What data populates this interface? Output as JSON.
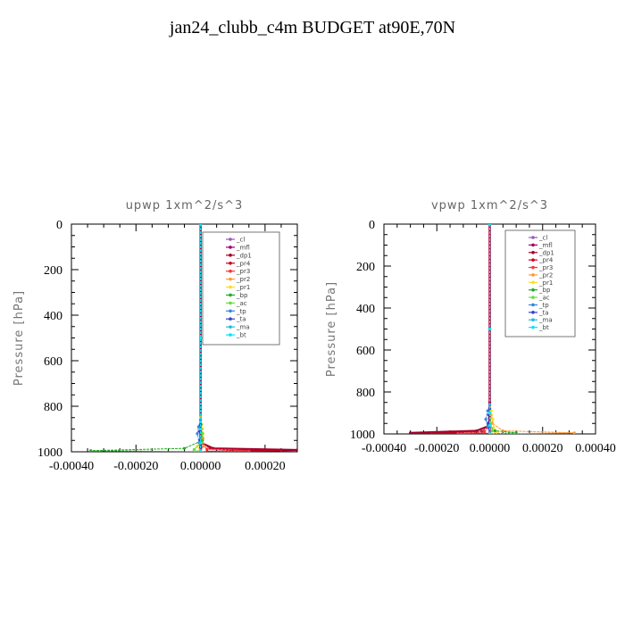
{
  "page_title": "jan24_clubb_c4m  BUDGET at90E,70N",
  "colors": {
    "_cl": "#9b59b6",
    "_mfl": "#a0006e",
    "_dp1": "#a0002a",
    "_pr4": "#cc0022",
    "_pr3": "#ff3333",
    "_pr2": "#ff9933",
    "_pr1": "#ffdd22",
    "_bp": "#22aa22",
    "_ac": "#66dd44",
    "_tp": "#3388dd",
    "_ta": "#3344cc",
    "_ma": "#22bbdd",
    "_bt": "#00e5ff"
  },
  "chart_data": [
    {
      "type": "line",
      "title": "upwp   1xm^2/s^3",
      "ylabel": "Pressure [hPa]",
      "xlim": [
        -0.0004,
        0.0003
      ],
      "ylim": [
        1000,
        0
      ],
      "x_ticks": [
        "-0.00040",
        "-0.00020",
        "0.00000",
        "0.00020"
      ],
      "y_ticks": [
        "0",
        "200",
        "400",
        "600",
        "800",
        "1000"
      ],
      "legend": "top-right",
      "legend_labels": [
        "_cl",
        "_mfl",
        "_dp1",
        "_pr4",
        "_pr3",
        "_pr2",
        "_pr1",
        "_bp",
        "_ac",
        "_tp",
        "_ta",
        "_ma",
        "_bt"
      ],
      "series": [
        {
          "name": "_cl",
          "points": [
            [
              0,
              0
            ],
            [
              0,
              500
            ],
            [
              0,
              850
            ],
            [
              0,
              950
            ],
            [
              2e-06,
              980
            ],
            [
              0,
              1000
            ]
          ]
        },
        {
          "name": "_mfl",
          "points": [
            [
              0,
              0
            ],
            [
              0,
              500
            ],
            [
              0,
              850
            ],
            [
              0,
              950
            ],
            [
              0,
              980
            ],
            [
              0,
              1000
            ]
          ]
        },
        {
          "name": "_dp1",
          "points": [
            [
              0,
              0
            ],
            [
              0,
              500
            ],
            [
              0,
              900
            ],
            [
              0,
              960
            ],
            [
              4e-05,
              985
            ],
            [
              0.0003,
              992
            ],
            [
              2e-05,
              1000
            ]
          ]
        },
        {
          "name": "_pr4",
          "points": [
            [
              0,
              0
            ],
            [
              0,
              500
            ],
            [
              0,
              900
            ],
            [
              3e-06,
              960
            ],
            [
              3e-05,
              985
            ],
            [
              0.00025,
              995
            ],
            [
              0,
              1000
            ]
          ]
        },
        {
          "name": "_pr3",
          "points": [
            [
              0,
              0
            ],
            [
              0,
              500
            ],
            [
              0,
              900
            ],
            [
              0,
              960
            ],
            [
              2e-05,
              988
            ],
            [
              0.00015,
              997
            ],
            [
              0,
              1000
            ]
          ]
        },
        {
          "name": "_pr2",
          "points": [
            [
              0,
              0
            ],
            [
              0,
              500
            ],
            [
              0,
              860
            ],
            [
              5e-06,
              900
            ],
            [
              8e-06,
              940
            ],
            [
              1e-05,
              975
            ],
            [
              0,
              1000
            ]
          ]
        },
        {
          "name": "_pr1",
          "points": [
            [
              0,
              0
            ],
            [
              0,
              500
            ],
            [
              0,
              850
            ],
            [
              4e-06,
              880
            ],
            [
              8e-06,
              920
            ],
            [
              -1e-05,
              975
            ],
            [
              0,
              1000
            ]
          ]
        },
        {
          "name": "_bp",
          "points": [
            [
              0,
              0
            ],
            [
              0,
              500
            ],
            [
              0,
              900
            ],
            [
              6e-06,
              950
            ],
            [
              -5e-05,
              985
            ],
            [
              -0.00034,
              995
            ],
            [
              0,
              1000
            ]
          ]
        },
        {
          "name": "_ac",
          "points": [
            [
              0,
              0
            ],
            [
              0,
              500
            ],
            [
              2e-06,
              880
            ],
            [
              6e-06,
              920
            ],
            [
              4e-06,
              960
            ],
            [
              -2e-05,
              990
            ],
            [
              0,
              1000
            ]
          ]
        },
        {
          "name": "_tp",
          "points": [
            [
              0,
              0
            ],
            [
              0,
              500
            ],
            [
              0,
              860
            ],
            [
              -6e-06,
              890
            ],
            [
              -1e-05,
              920
            ],
            [
              -4e-06,
              960
            ],
            [
              0,
              1000
            ]
          ]
        },
        {
          "name": "_ta",
          "points": [
            [
              0,
              0
            ],
            [
              0,
              500
            ],
            [
              0,
              880
            ],
            [
              -3e-06,
              910
            ],
            [
              -2e-06,
              950
            ],
            [
              0,
              1000
            ]
          ]
        },
        {
          "name": "_ma",
          "points": [
            [
              0,
              0
            ],
            [
              0,
              500
            ],
            [
              0,
              900
            ],
            [
              0,
              960
            ],
            [
              0,
              1000
            ]
          ]
        },
        {
          "name": "_bt",
          "points": [
            [
              0,
              0
            ],
            [
              0,
              500
            ],
            [
              0,
              900
            ],
            [
              0,
              960
            ],
            [
              0,
              1000
            ]
          ]
        }
      ]
    },
    {
      "type": "line",
      "title": "vpwp   1xm^2/s^3",
      "ylabel": "Pressure [hPa]",
      "xlim": [
        -0.0004,
        0.0004
      ],
      "ylim": [
        1000,
        0
      ],
      "x_ticks": [
        "-0.00040",
        "-0.00020",
        "0.00000",
        "0.00020",
        "0.00040"
      ],
      "y_ticks": [
        "0",
        "200",
        "400",
        "600",
        "800",
        "1000"
      ],
      "legend": "top-right",
      "legend_labels": [
        "_cl",
        "_mfl",
        "_dp1",
        "_pr4",
        "_pr3",
        "_pr2",
        "_pr1",
        "_bp",
        "_ac",
        "_tp",
        "_ta",
        "_ma",
        "_bt"
      ],
      "series": [
        {
          "name": "_cl",
          "points": [
            [
              0,
              0
            ],
            [
              0,
              500
            ],
            [
              0,
              850
            ],
            [
              0,
              950
            ],
            [
              0,
              1000
            ]
          ]
        },
        {
          "name": "_mfl",
          "points": [
            [
              0,
              0
            ],
            [
              0,
              500
            ],
            [
              0,
              850
            ],
            [
              0,
              950
            ],
            [
              0,
              1000
            ]
          ]
        },
        {
          "name": "_dp1",
          "points": [
            [
              0,
              0
            ],
            [
              0,
              500
            ],
            [
              0,
              900
            ],
            [
              0,
              960
            ],
            [
              -5e-05,
              985
            ],
            [
              -0.0003,
              995
            ],
            [
              0,
              1000
            ]
          ]
        },
        {
          "name": "_pr4",
          "points": [
            [
              0,
              0
            ],
            [
              0,
              500
            ],
            [
              0,
              900
            ],
            [
              0,
              960
            ],
            [
              -3e-05,
              988
            ],
            [
              -0.00022,
              997
            ],
            [
              0,
              1000
            ]
          ]
        },
        {
          "name": "_pr3",
          "points": [
            [
              0,
              0
            ],
            [
              0,
              500
            ],
            [
              0,
              900
            ],
            [
              0,
              960
            ],
            [
              -2e-05,
              990
            ],
            [
              -0.00012,
              998
            ],
            [
              0,
              1000
            ]
          ]
        },
        {
          "name": "_pr2",
          "points": [
            [
              0,
              0
            ],
            [
              0,
              500
            ],
            [
              0,
              880
            ],
            [
              6e-06,
              910
            ],
            [
              1e-05,
              950
            ],
            [
              5e-05,
              985
            ],
            [
              0.00032,
              995
            ],
            [
              0,
              1000
            ]
          ]
        },
        {
          "name": "_pr1",
          "points": [
            [
              0,
              0
            ],
            [
              0,
              500
            ],
            [
              0,
              860
            ],
            [
              6e-06,
              890
            ],
            [
              1.2e-05,
              930
            ],
            [
              1.5e-05,
              970
            ],
            [
              3e-05,
              990
            ],
            [
              0,
              1000
            ]
          ]
        },
        {
          "name": "_bp",
          "points": [
            [
              0,
              0
            ],
            [
              0,
              500
            ],
            [
              0,
              900
            ],
            [
              0,
              960
            ],
            [
              2e-05,
              985
            ],
            [
              0.0001,
              994
            ],
            [
              0,
              1000
            ]
          ]
        },
        {
          "name": "_ac",
          "points": [
            [
              0,
              0
            ],
            [
              0,
              500
            ],
            [
              0,
              900
            ],
            [
              4e-06,
              950
            ],
            [
              1e-05,
              985
            ],
            [
              0,
              1000
            ]
          ]
        },
        {
          "name": "_tp",
          "points": [
            [
              0,
              0
            ],
            [
              0,
              500
            ],
            [
              0,
              860
            ],
            [
              -8e-06,
              890
            ],
            [
              -1.5e-05,
              930
            ],
            [
              -8e-06,
              965
            ],
            [
              0,
              1000
            ]
          ]
        },
        {
          "name": "_ta",
          "points": [
            [
              0,
              0
            ],
            [
              0,
              500
            ],
            [
              0,
              880
            ],
            [
              -4e-06,
              910
            ],
            [
              -6e-06,
              950
            ],
            [
              0,
              1000
            ]
          ]
        },
        {
          "name": "_ma",
          "points": [
            [
              0,
              0
            ],
            [
              0,
              500
            ],
            [
              0,
              900
            ],
            [
              0,
              960
            ],
            [
              0,
              1000
            ]
          ]
        },
        {
          "name": "_bt",
          "points": [
            [
              0,
              0
            ],
            [
              0,
              500
            ],
            [
              0,
              900
            ],
            [
              0,
              960
            ],
            [
              0,
              1000
            ]
          ]
        }
      ]
    }
  ]
}
